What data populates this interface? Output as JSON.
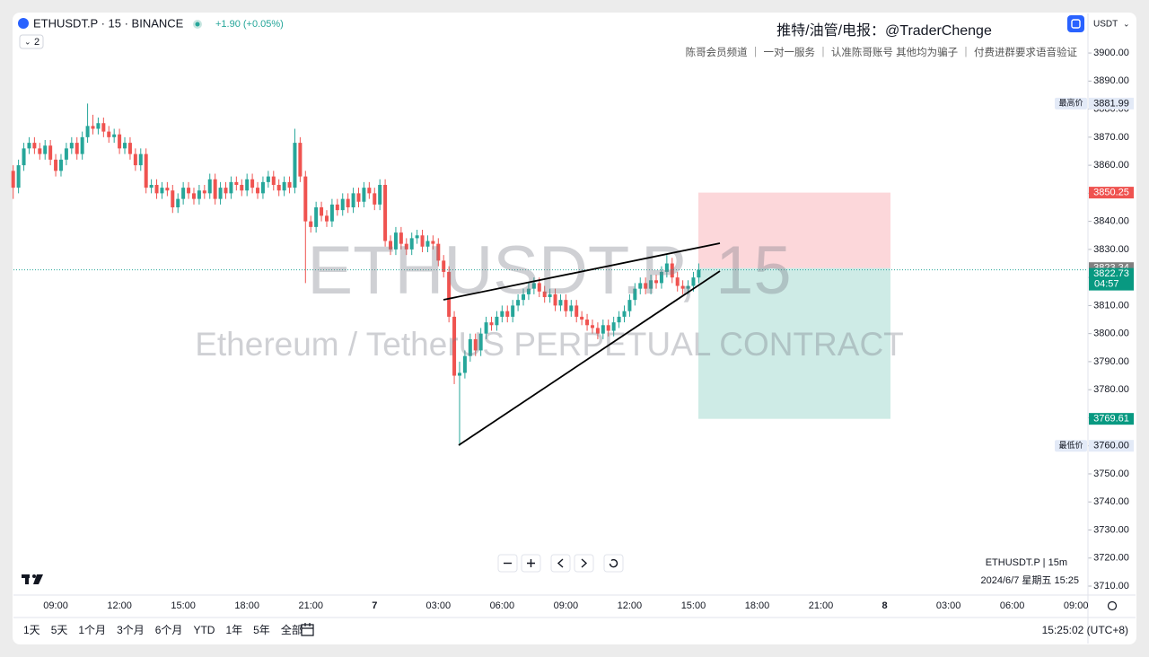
{
  "header": {
    "symbol": "ETHUSDT.P · 15 · BINANCE",
    "change": "+1.90 (+0.05%)",
    "indicators": "2",
    "currency": "USDT",
    "promo_title": "推特/油管/电报：@TraderChenge",
    "promo_line": "陈哥会员频道 ｜ 一对一服务 ｜ 认准陈哥账号  其他均为骗子 ｜ 付费进群要求语音验证"
  },
  "watermark": {
    "symbol": "ETHUSDT.P, 15",
    "description": "Ethereum / TetherUS PERPETUAL CONTRACT"
  },
  "legend": {
    "symbol_interval": "ETHUSDT.P | 15m",
    "datetime": "2024/6/7 星期五 15:25"
  },
  "footer": {
    "ranges": [
      "1天",
      "5天",
      "1个月",
      "3个月",
      "6个月",
      "YTD",
      "1年",
      "5年",
      "全部"
    ],
    "clock": "15:25:02 (UTC+8)"
  },
  "chart_data": {
    "type": "candlestick",
    "up_color": "#26a69a",
    "down_color": "#ef5350",
    "categories": [
      null,
      null,
      null,
      null,
      null,
      null,
      null,
      null,
      "09:00",
      null,
      null,
      null,
      null,
      null,
      null,
      null,
      null,
      null,
      null,
      null,
      "12:00",
      null,
      null,
      null,
      null,
      null,
      null,
      null,
      null,
      null,
      null,
      null,
      "15:00",
      null,
      null,
      null,
      null,
      null,
      null,
      null,
      null,
      null,
      null,
      null,
      "18:00",
      null,
      null,
      null,
      null,
      null,
      null,
      null,
      null,
      null,
      null,
      null,
      "21:00",
      null,
      null,
      null,
      null,
      null,
      null,
      null,
      null,
      null,
      null,
      null,
      "7",
      null,
      null,
      null,
      null,
      null,
      null,
      null,
      null,
      null,
      null,
      null,
      "03:00",
      null,
      null,
      null,
      null,
      null,
      null,
      null,
      null,
      null,
      null,
      null,
      "06:00",
      null,
      null,
      null,
      null,
      null,
      null,
      null,
      null,
      null,
      null,
      null,
      "09:00",
      null,
      null,
      null,
      null,
      null,
      null,
      null,
      null,
      null,
      null,
      null,
      "12:00",
      null,
      null,
      null,
      null,
      null,
      null,
      null,
      null,
      null,
      null,
      null,
      "15:00",
      null
    ],
    "future_categories": [
      "18:00",
      "21:00",
      "8",
      "03:00",
      "06:00",
      "09:00"
    ],
    "open": [
      3858,
      3852,
      3860,
      3866,
      3868,
      3866,
      3864,
      3867,
      3862,
      3858,
      3862,
      3866,
      3868,
      3864,
      3870,
      3874,
      3873,
      3875,
      3872,
      3870,
      3871,
      3866,
      3868,
      3864,
      3860,
      3864,
      3852,
      3853,
      3850,
      3852,
      3851,
      3845,
      3848,
      3852,
      3850,
      3848,
      3851,
      3850,
      3855,
      3848,
      3852,
      3850,
      3854,
      3853,
      3851,
      3855,
      3852,
      3850,
      3854,
      3856,
      3853,
      3851,
      3854,
      3852,
      3868,
      3856,
      3840,
      3838,
      3845,
      3842,
      3840,
      3846,
      3844,
      3848,
      3845,
      3850,
      3847,
      3852,
      3850,
      3846,
      3853,
      3833,
      3830,
      3836,
      3832,
      3830,
      3834,
      3835,
      3831,
      3833,
      3832,
      3826,
      3822,
      3806,
      3785,
      3786,
      3792,
      3798,
      3794,
      3800,
      3804,
      3803,
      3806,
      3808,
      3806,
      3810,
      3812,
      3814,
      3816,
      3818,
      3815,
      3813,
      3814,
      3810,
      3812,
      3808,
      3810,
      3806,
      3805,
      3803,
      3802,
      3800,
      3803,
      3801,
      3804,
      3806,
      3808,
      3812,
      3816,
      3818,
      3816,
      3819,
      3818,
      3822,
      3825,
      3820,
      3817,
      3816,
      3817,
      3820
    ],
    "high": [
      3860,
      3862,
      3868,
      3870,
      3870,
      3868,
      3869,
      3869,
      3864,
      3864,
      3868,
      3870,
      3870,
      3872,
      3881.99,
      3878,
      3877,
      3877,
      3874,
      3873,
      3873,
      3870,
      3870,
      3866,
      3866,
      3866,
      3855,
      3855,
      3854,
      3854,
      3853,
      3850,
      3854,
      3854,
      3852,
      3853,
      3853,
      3857,
      3857,
      3854,
      3854,
      3856,
      3856,
      3855,
      3857,
      3857,
      3854,
      3856,
      3858,
      3858,
      3855,
      3856,
      3856,
      3873,
      3870,
      3858,
      3842,
      3847,
      3847,
      3844,
      3848,
      3848,
      3850,
      3850,
      3852,
      3852,
      3854,
      3854,
      3852,
      3855,
      3855,
      3835,
      3838,
      3838,
      3834,
      3836,
      3837,
      3837,
      3835,
      3835,
      3834,
      3828,
      3824,
      3808,
      3790,
      3794,
      3800,
      3800,
      3802,
      3806,
      3806,
      3808,
      3810,
      3810,
      3812,
      3814,
      3816,
      3818,
      3820,
      3820,
      3817,
      3816,
      3816,
      3814,
      3814,
      3812,
      3812,
      3808,
      3807,
      3805,
      3804,
      3805,
      3805,
      3806,
      3808,
      3810,
      3814,
      3818,
      3820,
      3820,
      3821,
      3821,
      3824,
      3828,
      3827,
      3822,
      3819,
      3819,
      3822,
      3825
    ],
    "low": [
      3848,
      3850,
      3858,
      3864,
      3864,
      3862,
      3862,
      3860,
      3856,
      3856,
      3860,
      3864,
      3862,
      3862,
      3868,
      3871,
      3871,
      3870,
      3868,
      3868,
      3864,
      3864,
      3862,
      3858,
      3858,
      3850,
      3850,
      3848,
      3848,
      3849,
      3843,
      3843,
      3846,
      3848,
      3846,
      3846,
      3848,
      3848,
      3846,
      3846,
      3848,
      3848,
      3851,
      3849,
      3849,
      3850,
      3848,
      3848,
      3852,
      3851,
      3849,
      3849,
      3850,
      3850,
      3854,
      3818,
      3836,
      3836,
      3840,
      3838,
      3838,
      3842,
      3842,
      3843,
      3843,
      3845,
      3845,
      3848,
      3844,
      3844,
      3831,
      3828,
      3828,
      3830,
      3828,
      3828,
      3832,
      3829,
      3829,
      3830,
      3824,
      3820,
      3804,
      3782,
      3760,
      3784,
      3790,
      3792,
      3792,
      3798,
      3801,
      3801,
      3804,
      3804,
      3804,
      3808,
      3810,
      3812,
      3814,
      3813,
      3811,
      3811,
      3808,
      3808,
      3806,
      3806,
      3804,
      3803,
      3801,
      3800,
      3798,
      3798,
      3799,
      3799,
      3802,
      3804,
      3806,
      3810,
      3814,
      3814,
      3814,
      3816,
      3816,
      3820,
      3818,
      3815,
      3814,
      3814,
      3815,
      3818
    ],
    "close": [
      3852,
      3860,
      3866,
      3868,
      3866,
      3864,
      3867,
      3862,
      3858,
      3862,
      3866,
      3868,
      3864,
      3870,
      3874,
      3873,
      3875,
      3872,
      3870,
      3871,
      3866,
      3868,
      3864,
      3860,
      3864,
      3852,
      3853,
      3850,
      3852,
      3851,
      3845,
      3848,
      3852,
      3850,
      3848,
      3851,
      3850,
      3855,
      3848,
      3852,
      3850,
      3854,
      3853,
      3851,
      3855,
      3852,
      3850,
      3854,
      3856,
      3853,
      3851,
      3854,
      3852,
      3868,
      3856,
      3840,
      3838,
      3845,
      3842,
      3840,
      3846,
      3844,
      3848,
      3845,
      3850,
      3847,
      3852,
      3850,
      3846,
      3853,
      3833,
      3830,
      3836,
      3832,
      3830,
      3834,
      3835,
      3831,
      3833,
      3832,
      3826,
      3822,
      3806,
      3785,
      3786,
      3792,
      3798,
      3794,
      3800,
      3804,
      3803,
      3806,
      3808,
      3806,
      3810,
      3812,
      3814,
      3816,
      3818,
      3815,
      3813,
      3814,
      3810,
      3812,
      3808,
      3810,
      3806,
      3805,
      3803,
      3802,
      3800,
      3803,
      3801,
      3804,
      3806,
      3808,
      3812,
      3816,
      3818,
      3816,
      3819,
      3818,
      3822,
      3825,
      3820,
      3817,
      3816,
      3817,
      3820,
      3822.73
    ],
    "ylim": [
      3706.8,
      3914.1
    ],
    "yticks": [
      {
        "value": 3710,
        "label": "3710.00"
      },
      {
        "value": 3720,
        "label": "3720.00"
      },
      {
        "value": 3730,
        "label": "3730.00"
      },
      {
        "value": 3740,
        "label": "3740.00"
      },
      {
        "value": 3750,
        "label": "3750.00"
      },
      {
        "value": 3760,
        "label": "3760.00"
      },
      {
        "value": 3770,
        "label": "3770.00"
      },
      {
        "value": 3780,
        "label": "3780.00"
      },
      {
        "value": 3790,
        "label": "3790.00"
      },
      {
        "value": 3800,
        "label": "3800.00"
      },
      {
        "value": 3810,
        "label": "3810.00"
      },
      {
        "value": 3820,
        "label": "3820.00"
      },
      {
        "value": 3830,
        "label": "3830.00"
      },
      {
        "value": 3840,
        "label": "3840.00"
      },
      {
        "value": 3850,
        "label": "3850.00"
      },
      {
        "value": 3860,
        "label": "3860.00"
      },
      {
        "value": 3870,
        "label": "3870.00"
      },
      {
        "value": 3880,
        "label": "3880.00"
      },
      {
        "value": 3890,
        "label": "3890.00"
      },
      {
        "value": 3900,
        "label": "3900.00"
      }
    ],
    "high_marker": {
      "label": "最高价",
      "price": 3881.99
    },
    "low_marker": {
      "label": "最低价",
      "price": {
        "value": 3760,
        "label": "3760.00"
      }
    },
    "position": {
      "stop": 3850.25,
      "entry": 3823.34,
      "target": 3769.61
    },
    "last_price": 3822.73,
    "countdown": "04:57"
  }
}
